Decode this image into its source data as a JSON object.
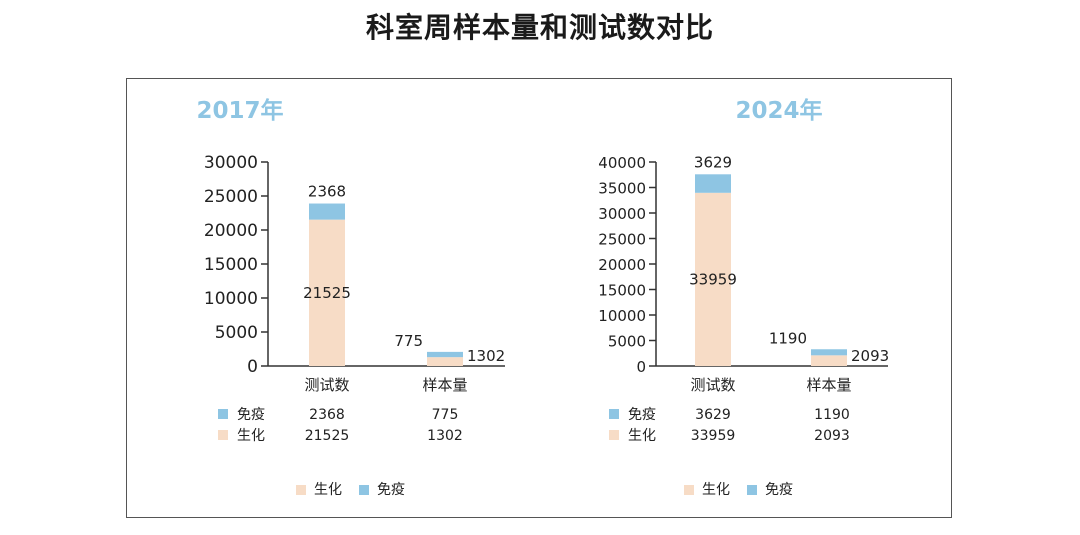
{
  "page": {
    "title": "科室周样本量和测试数对比"
  },
  "colors": {
    "shenghua": "#f7dcc6",
    "mianyi": "#8ec5e3",
    "year_title": "#8ec5e3",
    "axis": "#333333"
  },
  "chart_data": [
    {
      "type": "bar",
      "stacked": true,
      "title": "2017年",
      "categories": [
        "测试数",
        "样本量"
      ],
      "ylim": [
        0,
        30000
      ],
      "yticks": [
        0,
        5000,
        10000,
        15000,
        20000,
        25000,
        30000
      ],
      "series": [
        {
          "name": "生化",
          "values": [
            21525,
            1302
          ]
        },
        {
          "name": "免疫",
          "values": [
            2368,
            775
          ]
        }
      ],
      "legend": [
        "生化",
        "免疫"
      ],
      "legend_position": "bottom",
      "grid": false
    },
    {
      "type": "bar",
      "stacked": true,
      "title": "2024年",
      "categories": [
        "测试数",
        "样本量"
      ],
      "ylim": [
        0,
        40000
      ],
      "yticks": [
        0,
        5000,
        10000,
        15000,
        20000,
        25000,
        30000,
        35000,
        40000
      ],
      "series": [
        {
          "name": "生化",
          "values": [
            33959,
            2093
          ]
        },
        {
          "name": "免疫",
          "values": [
            3629,
            1190
          ]
        }
      ],
      "legend": [
        "生化",
        "免疫"
      ],
      "legend_position": "bottom",
      "grid": false
    }
  ]
}
